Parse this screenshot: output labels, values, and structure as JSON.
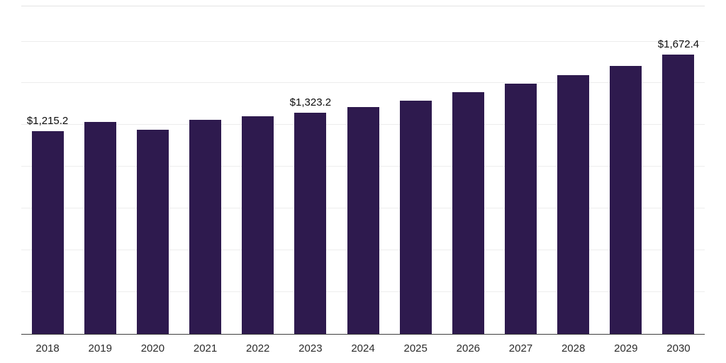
{
  "chart_data": {
    "type": "bar",
    "title": "",
    "xlabel": "",
    "ylabel": "",
    "categories": [
      "2018",
      "2019",
      "2020",
      "2021",
      "2022",
      "2023",
      "2024",
      "2025",
      "2026",
      "2027",
      "2028",
      "2029",
      "2030"
    ],
    "values": [
      1215.2,
      1268,
      1221,
      1283,
      1304,
      1323.2,
      1356,
      1396,
      1447,
      1497,
      1548,
      1603,
      1672.4
    ],
    "data_labels": [
      "$1,215.2",
      "",
      "",
      "",
      "",
      "$1,323.2",
      "",
      "",
      "",
      "",
      "",
      "",
      "$1,672.4"
    ],
    "ylim": [
      0,
      1960
    ],
    "grid_step": 250,
    "grid": "horizontal",
    "legend": "none",
    "bar_color": "#2e1a4e",
    "axis_line_color": "#3f3f3f",
    "gridline_color": "#ededed",
    "label_color": "#0d0d0d",
    "tick_label_color": "#2b2b2b"
  }
}
